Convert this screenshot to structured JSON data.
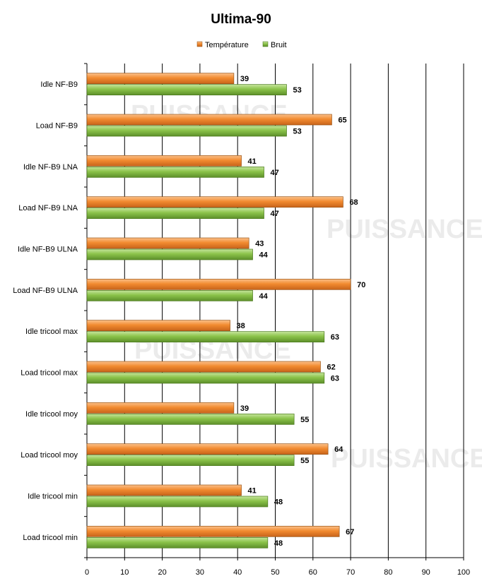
{
  "chart_data": {
    "type": "bar",
    "orientation": "horizontal",
    "title": "Ultima-90",
    "categories": [
      "Idle NF-B9",
      "Load NF-B9",
      "Idle NF-B9  LNA",
      "Load NF-B9  LNA",
      "Idle NF-B9  ULNA",
      "Load NF-B9  ULNA",
      "Idle tricool max",
      "Load tricool max",
      "Idle tricool moy",
      "Load tricool moy",
      "Idle tricool min",
      "Load tricool min"
    ],
    "series": [
      {
        "name": "Température",
        "color": "#f28b30",
        "values": [
          39,
          65,
          41,
          68,
          43,
          70,
          38,
          62,
          39,
          64,
          41,
          67
        ]
      },
      {
        "name": "Bruit",
        "color": "#8bc34a",
        "values": [
          53,
          53,
          47,
          47,
          44,
          44,
          63,
          63,
          55,
          55,
          48,
          48
        ]
      }
    ],
    "xlim": [
      0,
      100
    ],
    "x_ticks": [
      "0",
      "10",
      "20",
      "30",
      "40",
      "50",
      "60",
      "70",
      "80",
      "90",
      "100"
    ],
    "grid": "vertical",
    "legend": "top-center",
    "watermark": "PUISSANCE"
  }
}
